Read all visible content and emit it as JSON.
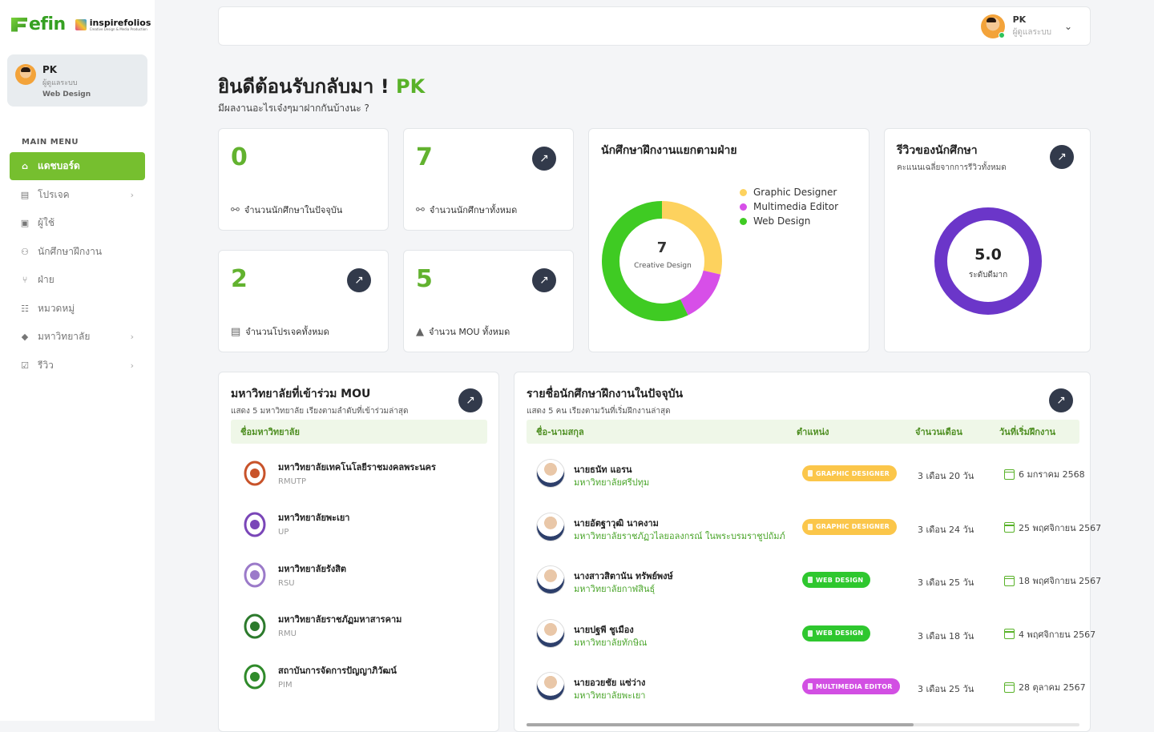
{
  "brand": {
    "efin": "efin",
    "inspire": "inspirefolios",
    "inspire_sub": "Creative Design & Media Production"
  },
  "profile": {
    "name": "PK",
    "role": "ผู้ดูแลระบบ",
    "dept": "Web Design"
  },
  "menu_title": "MAIN MENU",
  "menu": [
    {
      "label": "แดชบอร์ด",
      "icon": "home-icon",
      "active": true,
      "chevron": false
    },
    {
      "label": "โปรเจค",
      "icon": "project-icon",
      "active": false,
      "chevron": true
    },
    {
      "label": "ผู้ใช้",
      "icon": "user-card-icon",
      "active": false,
      "chevron": false
    },
    {
      "label": "นักศึกษาฝึกงาน",
      "icon": "users-icon",
      "active": false,
      "chevron": false
    },
    {
      "label": "ฝ่าย",
      "icon": "hierarchy-icon",
      "active": false,
      "chevron": false
    },
    {
      "label": "หมวดหมู่",
      "icon": "category-icon",
      "active": false,
      "chevron": false
    },
    {
      "label": "มหาวิทยาลัย",
      "icon": "graduation-icon",
      "active": false,
      "chevron": true
    },
    {
      "label": "รีวิว",
      "icon": "review-icon",
      "active": false,
      "chevron": true
    }
  ],
  "topbar": {
    "name": "PK",
    "role": "ผู้ดูแลระบบ"
  },
  "welcome": {
    "text": "ยินดีต้อนรับกลับมา ! ",
    "name": "PK",
    "sub": "มีผลงานอะไรเจ๋งๆมาฝากกันบ้างนะ ?"
  },
  "stats": [
    {
      "value": "0",
      "label": "จำนวนนักศึกษาในปัจจุบัน"
    },
    {
      "value": "7",
      "label": "จำนวนนักศึกษาทั้งหมด"
    },
    {
      "value": "2",
      "label": "จำนวนโปรเจคทั้งหมด"
    },
    {
      "value": "5",
      "label": "จำนวน MOU ทั้งหมด"
    }
  ],
  "dept_chart": {
    "title": "นักศึกษาฝึกงานแยกตามฝ่าย",
    "center_value": "7",
    "center_label": "Creative Design",
    "legend": [
      {
        "name": "Graphic Designer",
        "color": "#fdd25e"
      },
      {
        "name": "Multimedia Editor",
        "color": "#d74fe8"
      },
      {
        "name": "Web Design",
        "color": "#3fcb23"
      }
    ]
  },
  "chart_data": {
    "type": "pie",
    "categories": [
      "Graphic Designer",
      "Multimedia Editor",
      "Web Design"
    ],
    "values": [
      2,
      1,
      4
    ],
    "colors": [
      "#fdd25e",
      "#d74fe8",
      "#3fcb23"
    ]
  },
  "review": {
    "title": "รีวิวของนักศึกษา",
    "sub": "คะแนนเฉลี่ยจากการรีวิวทั้งหมด",
    "score": "5.0",
    "score_label": "ระดับดีมาก",
    "score_fraction": 1.0,
    "color": "#6b36c9"
  },
  "mou": {
    "title": "มหาวิทยาลัยที่เข้าร่วม MOU",
    "sub": "แสดง 5 มหาวิทยาลัย เรียงตามลำดับที่เข้าร่วมล่าสุด",
    "col": "ชื่อมหาวิทยาลัย",
    "rows": [
      {
        "name": "มหาวิทยาลัยเทคโนโลยีราชมงคลพระนคร",
        "abbr": "RMUTP",
        "logo_color": "#c8532a"
      },
      {
        "name": "มหาวิทยาลัยพะเยา",
        "abbr": "UP",
        "logo_color": "#7a46b8"
      },
      {
        "name": "มหาวิทยาลัยรังสิต",
        "abbr": "RSU",
        "logo_color": "#9b7ac9"
      },
      {
        "name": "มหาวิทยาลัยราชภัฏมหาสารคาม",
        "abbr": "RMU",
        "logo_color": "#2c7a2c"
      },
      {
        "name": "สถาบันการจัดการปัญญาภิวัฒน์",
        "abbr": "PIM",
        "logo_color": "#2f8a2a"
      }
    ]
  },
  "interns": {
    "title": "รายชื่อนักศึกษาฝึกงานในปัจจุบัน",
    "sub": "แสดง 5 คน เรียงตามวันที่เริ่มฝึกงานล่าสุด",
    "cols": {
      "name": "ชื่อ-นามสกุล",
      "position": "ตำแหน่ง",
      "months": "จำนวนเดือน",
      "start": "วันที่เริ่มฝึกงาน"
    },
    "rows": [
      {
        "name": "นายธนัท แอรน",
        "uni": "มหาวิทยาลัยศรีปทุม",
        "position": "GRAPHIC DESIGNER",
        "badge_color": "#fbc64a",
        "months": "3 เดือน 20 วัน",
        "start": "6 มกราคม 2568"
      },
      {
        "name": "นายอัตฐาวุฒิ นาคงาม",
        "uni": "มหาวิทยาลัยราชภัฏวไลยอลงกรณ์ ในพระบรมราชูปถัมภ์",
        "position": "GRAPHIC DESIGNER",
        "badge_color": "#fbc64a",
        "months": "3 เดือน 24 วัน",
        "start": "25 พฤศจิกายน 2567"
      },
      {
        "name": "นางสาวสิตานัน ทรัพย์พงษ์",
        "uni": "มหาวิทยาลัยกาฬสินธุ์",
        "position": "WEB DESIGN",
        "badge_color": "#2ec72e",
        "months": "3 เดือน 25 วัน",
        "start": "18 พฤศจิกายน 2567"
      },
      {
        "name": "นายปฐพี ชูเมือง",
        "uni": "มหาวิทยาลัยทักษิณ",
        "position": "WEB DESIGN",
        "badge_color": "#2ec72e",
        "months": "3 เดือน 18 วัน",
        "start": "4 พฤศจิกายน 2567"
      },
      {
        "name": "นายอวยชัย แซ่ว่าง",
        "uni": "มหาวิทยาลัยพะเยา",
        "position": "MULTIMEDIA EDITOR",
        "badge_color": "#d24fe3",
        "months": "3 เดือน 25 วัน",
        "start": "28 ตุลาคม 2567"
      }
    ]
  },
  "scroll_fraction": 0.7
}
